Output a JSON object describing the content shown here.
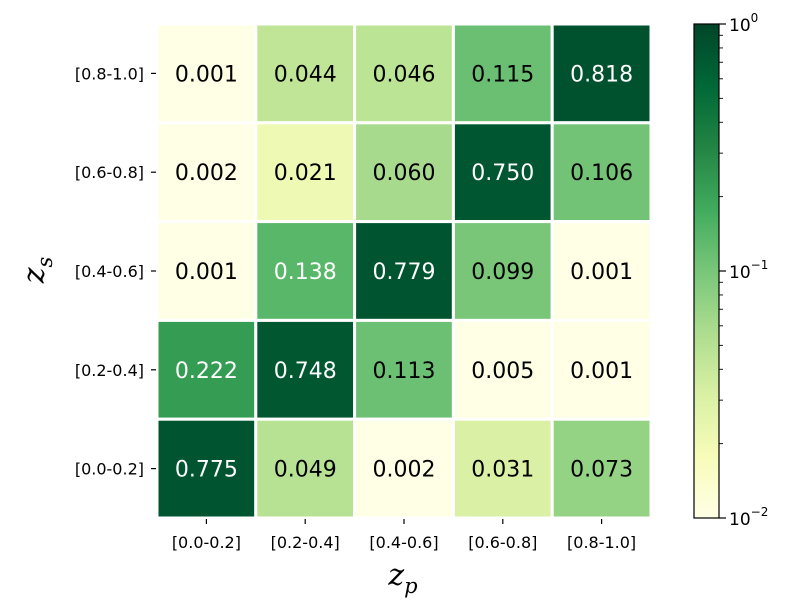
{
  "chart_data": {
    "type": "heatmap",
    "x_categories": [
      "[0.0-0.2]",
      "[0.2-0.4]",
      "[0.4-0.6]",
      "[0.6-0.8]",
      "[0.8-1.0]"
    ],
    "y_categories": [
      "[0.0-0.2]",
      "[0.2-0.4]",
      "[0.4-0.6]",
      "[0.6-0.8]",
      "[0.8-1.0]"
    ],
    "x_label": {
      "base": "z",
      "sub": "p"
    },
    "y_label": {
      "base": "z",
      "sub": "s"
    },
    "values_by_row_top_to_bottom": [
      {
        "y": "[0.8-1.0]",
        "values": [
          "0.001",
          "0.044",
          "0.046",
          "0.115",
          "0.818"
        ]
      },
      {
        "y": "[0.6-0.8]",
        "values": [
          "0.002",
          "0.021",
          "0.060",
          "0.750",
          "0.106"
        ]
      },
      {
        "y": "[0.4-0.6]",
        "values": [
          "0.001",
          "0.138",
          "0.779",
          "0.099",
          "0.001"
        ]
      },
      {
        "y": "[0.2-0.4]",
        "values": [
          "0.222",
          "0.748",
          "0.113",
          "0.005",
          "0.001"
        ]
      },
      {
        "y": "[0.0-0.2]",
        "values": [
          "0.775",
          "0.049",
          "0.002",
          "0.031",
          "0.073"
        ]
      }
    ],
    "colorbar": {
      "scale": "log",
      "min": 0.01,
      "max": 1.0,
      "ticks": [
        {
          "value": 1.0,
          "base": "10",
          "exp": "0"
        },
        {
          "value": 0.1,
          "base": "10",
          "exp": "−1"
        },
        {
          "value": 0.01,
          "base": "10",
          "exp": "−2"
        }
      ],
      "colormap": "YlGn",
      "colors": [
        "#ffffe5",
        "#f7fcb9",
        "#d9f0a3",
        "#addd8e",
        "#78c679",
        "#41ab5d",
        "#238443",
        "#006837",
        "#004529"
      ]
    },
    "text_colors": {
      "dark": "#000000",
      "light": "#ffffff"
    }
  }
}
